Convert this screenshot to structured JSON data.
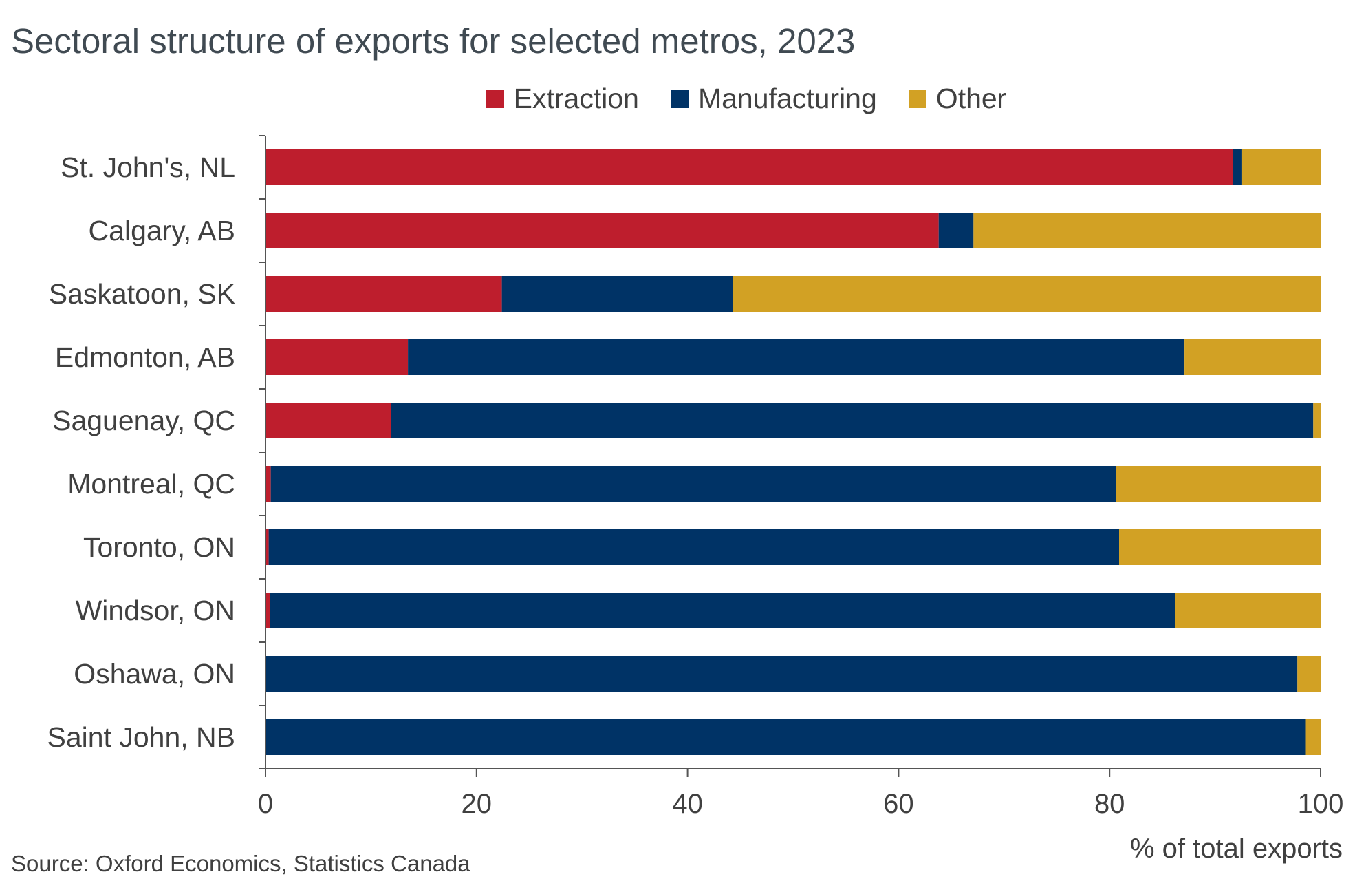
{
  "title": "Sectoral structure of exports for selected metros, 2023",
  "source": "Source: Oxford Economics, Statistics Canada",
  "colors": {
    "extraction": "#be1e2d",
    "manufacturing": "#003366",
    "other": "#d2a124",
    "axis": "#555555"
  },
  "chart_data": {
    "type": "bar",
    "orientation": "horizontal",
    "stacked": true,
    "categories": [
      "St. John's, NL",
      "Calgary, AB",
      "Saskatoon, SK",
      "Edmonton, AB",
      "Saguenay, QC",
      "Montreal, QC",
      "Toronto, ON",
      "Windsor, ON",
      "Oshawa, ON",
      "Saint John, NB"
    ],
    "series": [
      {
        "name": "Extraction",
        "color": "#be1e2d",
        "values": [
          91.7,
          63.8,
          22.4,
          13.5,
          11.9,
          0.5,
          0.3,
          0.4,
          0.0,
          0.0
        ]
      },
      {
        "name": "Manufacturing",
        "color": "#003366",
        "values": [
          0.8,
          3.3,
          21.9,
          73.6,
          87.4,
          80.1,
          80.6,
          85.8,
          97.8,
          98.6
        ]
      },
      {
        "name": "Other",
        "color": "#d2a124",
        "values": [
          7.5,
          32.9,
          55.7,
          12.9,
          0.7,
          19.4,
          19.1,
          13.8,
          2.2,
          1.4
        ]
      }
    ],
    "xlim": [
      0,
      100
    ],
    "xticks": [
      "0",
      "20",
      "40",
      "60",
      "80",
      "100"
    ],
    "xlabel": "% of total exports",
    "legend_position": "top",
    "grid": false
  }
}
